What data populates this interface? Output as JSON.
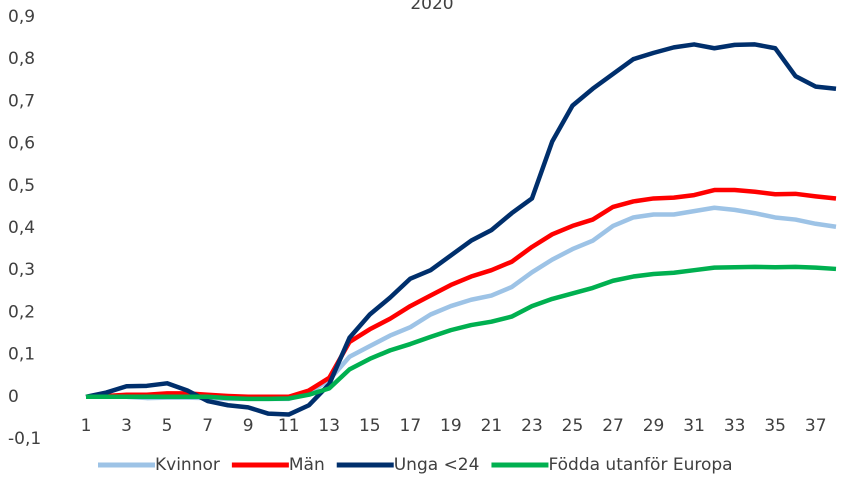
{
  "chart_data": {
    "type": "line",
    "title": "2020",
    "x": [
      1,
      2,
      3,
      4,
      5,
      6,
      7,
      8,
      9,
      10,
      11,
      12,
      13,
      14,
      15,
      16,
      17,
      18,
      19,
      20,
      21,
      22,
      23,
      24,
      25,
      26,
      27,
      28,
      29,
      30,
      31,
      32,
      33,
      34,
      35,
      36,
      37,
      38
    ],
    "xlim": [
      1,
      38
    ],
    "xticks": [
      1,
      3,
      5,
      7,
      9,
      11,
      13,
      15,
      17,
      19,
      21,
      23,
      25,
      27,
      29,
      31,
      33,
      35,
      37
    ],
    "ylim": [
      -0.1,
      0.9
    ],
    "yticks": [
      {
        "value": -0.1,
        "label": "-0,1"
      },
      0,
      {
        "value": 0.1,
        "label": "0,1"
      },
      {
        "value": 0.2,
        "label": "0,2"
      },
      {
        "value": 0.3,
        "label": "0,3"
      },
      {
        "value": 0.4,
        "label": "0,4"
      },
      {
        "value": 0.5,
        "label": "0,5"
      },
      {
        "value": 0.6,
        "label": "0,6"
      },
      {
        "value": 0.7,
        "label": "0,7"
      },
      {
        "value": 0.8,
        "label": "0,8"
      },
      {
        "value": 0.9,
        "label": "0,9"
      }
    ],
    "grid": false,
    "legend": "bottom",
    "series": [
      {
        "name": "Kvinnor",
        "color": "#9dc3e6",
        "values": [
          0,
          0,
          0,
          -0.003,
          -0.002,
          -0.002,
          -0.003,
          -0.005,
          -0.005,
          -0.005,
          -0.005,
          0.01,
          0.04,
          0.095,
          0.12,
          0.145,
          0.165,
          0.195,
          0.215,
          0.23,
          0.24,
          0.26,
          0.295,
          0.325,
          0.35,
          0.37,
          0.405,
          0.425,
          0.432,
          0.432,
          0.44,
          0.448,
          0.443,
          0.435,
          0.425,
          0.42,
          0.41,
          0.403
        ]
      },
      {
        "name": "Män",
        "color": "#ff0000",
        "values": [
          0,
          0.002,
          0.005,
          0.005,
          0.008,
          0.008,
          0.005,
          0.002,
          0,
          0,
          0,
          0.015,
          0.045,
          0.13,
          0.16,
          0.185,
          0.215,
          0.24,
          0.265,
          0.285,
          0.3,
          0.32,
          0.355,
          0.385,
          0.405,
          0.42,
          0.45,
          0.463,
          0.47,
          0.472,
          0.478,
          0.49,
          0.49,
          0.486,
          0.48,
          0.481,
          0.475,
          0.47
        ]
      },
      {
        "name": "Unga <24",
        "color": "#002f6c",
        "values": [
          0,
          0.01,
          0.025,
          0.026,
          0.032,
          0.015,
          -0.01,
          -0.02,
          -0.025,
          -0.04,
          -0.042,
          -0.02,
          0.03,
          0.14,
          0.195,
          0.235,
          0.28,
          0.3,
          0.335,
          0.37,
          0.395,
          0.435,
          0.47,
          0.605,
          0.69,
          0.73,
          0.765,
          0.8,
          0.815,
          0.828,
          0.835,
          0.826,
          0.834,
          0.835,
          0.826,
          0.76,
          0.735,
          0.73
        ]
      },
      {
        "name": "Födda utanför Europa",
        "color": "#00b050",
        "values": [
          0,
          0,
          0,
          0,
          0,
          0,
          0,
          -0.003,
          -0.005,
          -0.005,
          -0.004,
          0.005,
          0.02,
          0.065,
          0.09,
          0.11,
          0.125,
          0.142,
          0.158,
          0.17,
          0.178,
          0.19,
          0.215,
          0.232,
          0.245,
          0.258,
          0.275,
          0.285,
          0.291,
          0.294,
          0.3,
          0.306,
          0.307,
          0.308,
          0.307,
          0.308,
          0.306,
          0.303
        ]
      }
    ]
  }
}
